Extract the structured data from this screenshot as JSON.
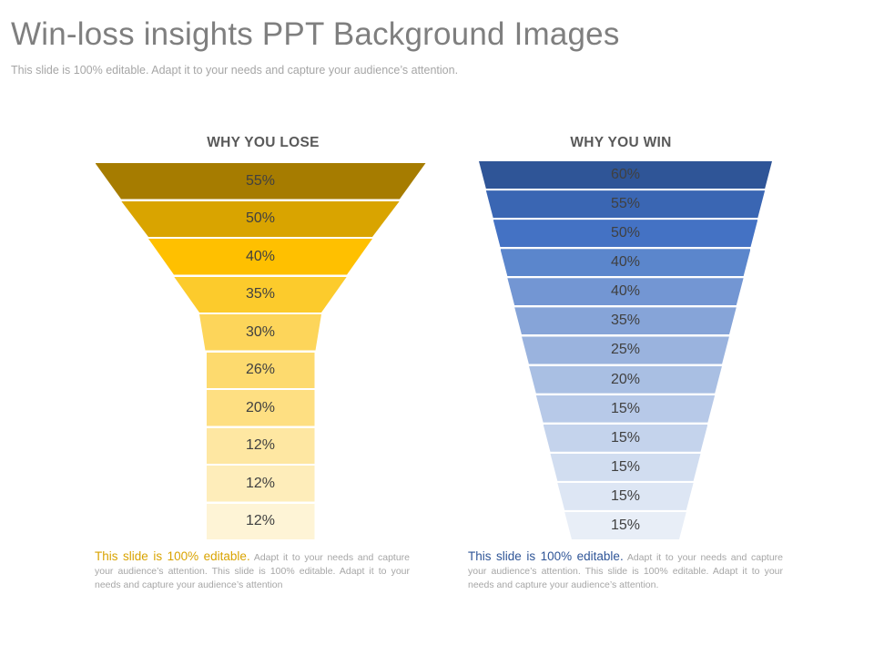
{
  "title": "Win-loss insights PPT Background Images",
  "subtitle": "This slide is 100% editable. Adapt it to your needs and capture your audience’s attention.",
  "lose": {
    "heading": "WHY YOU LOSE",
    "tiers": [
      "55%",
      "50%",
      "40%",
      "35%",
      "30%",
      "26%",
      "20%",
      "12%",
      "12%",
      "12%"
    ],
    "colors": [
      "#a67c00",
      "#d9a400",
      "#ffc000",
      "#fccb2c",
      "#fdd55a",
      "#fdda6e",
      "#fedf82",
      "#fee7a2",
      "#feedba",
      "#fef4d6"
    ],
    "note_lead": "This slide is 100% editable.",
    "note_body": "Adapt it to your needs and capture your audience’s attention. This slide is 100% editable. Adapt it to your needs and capture your audience’s attention"
  },
  "win": {
    "heading": "WHY YOU WIN",
    "tiers": [
      "60%",
      "55%",
      "50%",
      "40%",
      "40%",
      "35%",
      "25%",
      "20%",
      "15%",
      "15%",
      "15%",
      "15%",
      "15%"
    ],
    "colors": [
      "#2f5597",
      "#3a66b3",
      "#4472c4",
      "#5b86cc",
      "#7396d3",
      "#86a4d8",
      "#9ab3de",
      "#a9bfe3",
      "#b7c9e8",
      "#c4d3ec",
      "#d1ddf0",
      "#dde6f4",
      "#e8eef7"
    ],
    "note_lead": "This slide is 100% editable.",
    "note_body": "Adapt it to your needs and capture your audience’s attention. This slide is 100% editable. Adapt it to your needs and capture your audience’s attention."
  }
}
